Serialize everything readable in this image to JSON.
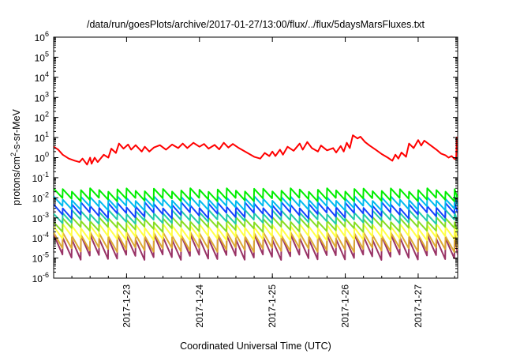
{
  "chart_data": {
    "type": "line",
    "title": "/data/run/goesPlots/archive/2017-01-27/13:00/flux/../flux/5daysMarsFluxes.txt",
    "xlabel": "Coordinated Universal Time (UTC)",
    "ylabel_parts": [
      "protons/cm",
      "2",
      "-s-sr-MeV"
    ],
    "yscale": "log",
    "ylim": [
      1e-06,
      1000000.0
    ],
    "xlim": [
      "2017-01-22T00:00",
      "2017-01-27T13:00"
    ],
    "grid": false,
    "y_ticks": [
      {
        "base": "10",
        "exp": "-6",
        "value": 1e-06
      },
      {
        "base": "10",
        "exp": "-5",
        "value": 1e-05
      },
      {
        "base": "10",
        "exp": "-4",
        "value": 0.0001
      },
      {
        "base": "10",
        "exp": "-3",
        "value": 0.001
      },
      {
        "base": "10",
        "exp": "-2",
        "value": 0.01
      },
      {
        "base": "10",
        "exp": "-1",
        "value": 0.1
      },
      {
        "base": "10",
        "exp": "0",
        "value": 1
      },
      {
        "base": "10",
        "exp": "1",
        "value": 10
      },
      {
        "base": "10",
        "exp": "2",
        "value": 100
      },
      {
        "base": "10",
        "exp": "3",
        "value": 1000
      },
      {
        "base": "10",
        "exp": "4",
        "value": 10000
      },
      {
        "base": "10",
        "exp": "5",
        "value": 100000
      },
      {
        "base": "10",
        "exp": "6",
        "value": 1000000
      }
    ],
    "x_ticks": [
      {
        "label": "2017-1-23",
        "value": "2017-01-23T00:00"
      },
      {
        "label": "2017-1-24",
        "value": "2017-01-24T00:00"
      },
      {
        "label": "2017-1-25",
        "value": "2017-01-25T00:00"
      },
      {
        "label": "2017-1-26",
        "value": "2017-01-26T00:00"
      },
      {
        "label": "2017-1-27",
        "value": "2017-01-27T00:00"
      }
    ],
    "series": [
      {
        "color": "#ff0000",
        "points": [
          [
            "2017-01-22T00:00",
            3.5
          ],
          [
            "2017-01-22T01:30",
            2.5
          ],
          [
            "2017-01-22T03:00",
            1.4
          ],
          [
            "2017-01-22T05:00",
            0.9
          ],
          [
            "2017-01-22T07:00",
            0.7
          ],
          [
            "2017-01-22T08:30",
            0.6
          ],
          [
            "2017-01-22T09:30",
            0.9
          ],
          [
            "2017-01-22T11:00",
            0.45
          ],
          [
            "2017-01-22T12:00",
            1.0
          ],
          [
            "2017-01-22T12:30",
            0.5
          ],
          [
            "2017-01-22T13:30",
            1.0
          ],
          [
            "2017-01-22T14:30",
            0.6
          ],
          [
            "2017-01-22T16:30",
            1.4
          ],
          [
            "2017-01-22T18:00",
            1.0
          ],
          [
            "2017-01-22T19:00",
            2.8
          ],
          [
            "2017-01-22T20:30",
            1.7
          ],
          [
            "2017-01-22T21:30",
            5.0
          ],
          [
            "2017-01-22T23:00",
            2.8
          ],
          [
            "2017-01-23T00:30",
            4.5
          ],
          [
            "2017-01-23T01:30",
            2.5
          ],
          [
            "2017-01-23T03:00",
            4.2
          ],
          [
            "2017-01-23T05:00",
            2.0
          ],
          [
            "2017-01-23T06:00",
            3.5
          ],
          [
            "2017-01-23T07:30",
            2.0
          ],
          [
            "2017-01-23T09:00",
            3.2
          ],
          [
            "2017-01-23T11:00",
            4.2
          ],
          [
            "2017-01-23T13:00",
            2.5
          ],
          [
            "2017-01-23T15:00",
            4.5
          ],
          [
            "2017-01-23T17:00",
            3.0
          ],
          [
            "2017-01-23T18:30",
            5.0
          ],
          [
            "2017-01-23T20:00",
            3.0
          ],
          [
            "2017-01-23T22:00",
            5.5
          ],
          [
            "2017-01-24T00:00",
            3.5
          ],
          [
            "2017-01-24T01:30",
            4.8
          ],
          [
            "2017-01-24T03:00",
            2.8
          ],
          [
            "2017-01-24T05:00",
            4.3
          ],
          [
            "2017-01-24T06:30",
            2.6
          ],
          [
            "2017-01-24T08:00",
            5.5
          ],
          [
            "2017-01-24T09:30",
            3.2
          ],
          [
            "2017-01-24T11:00",
            4.8
          ],
          [
            "2017-01-24T13:00",
            3.0
          ],
          [
            "2017-01-24T15:00",
            2.0
          ],
          [
            "2017-01-24T18:00",
            1.1
          ],
          [
            "2017-01-24T20:00",
            0.9
          ],
          [
            "2017-01-24T21:30",
            1.7
          ],
          [
            "2017-01-24T23:00",
            1.2
          ],
          [
            "2017-01-25T00:00",
            2.0
          ],
          [
            "2017-01-25T01:00",
            1.2
          ],
          [
            "2017-01-25T02:30",
            2.5
          ],
          [
            "2017-01-25T03:30",
            1.4
          ],
          [
            "2017-01-25T05:00",
            3.5
          ],
          [
            "2017-01-25T07:00",
            2.2
          ],
          [
            "2017-01-25T09:00",
            5.0
          ],
          [
            "2017-01-25T10:00",
            2.5
          ],
          [
            "2017-01-25T11:30",
            6.0
          ],
          [
            "2017-01-25T13:00",
            3.0
          ],
          [
            "2017-01-25T15:00",
            2.0
          ],
          [
            "2017-01-25T16:00",
            4.0
          ],
          [
            "2017-01-25T18:00",
            2.3
          ],
          [
            "2017-01-25T20:00",
            3.0
          ],
          [
            "2017-01-25T21:00",
            1.8
          ],
          [
            "2017-01-25T22:30",
            3.8
          ],
          [
            "2017-01-25T23:30",
            2.0
          ],
          [
            "2017-01-26T00:30",
            5.5
          ],
          [
            "2017-01-26T01:30",
            3.0
          ],
          [
            "2017-01-26T02:30",
            13
          ],
          [
            "2017-01-26T04:00",
            9
          ],
          [
            "2017-01-26T05:00",
            11
          ],
          [
            "2017-01-26T06:30",
            6
          ],
          [
            "2017-01-26T08:00",
            4
          ],
          [
            "2017-01-26T10:00",
            2.5
          ],
          [
            "2017-01-26T12:00",
            1.5
          ],
          [
            "2017-01-26T14:00",
            1.0
          ],
          [
            "2017-01-26T15:30",
            0.7
          ],
          [
            "2017-01-26T16:30",
            1.4
          ],
          [
            "2017-01-26T17:30",
            0.9
          ],
          [
            "2017-01-26T18:30",
            1.8
          ],
          [
            "2017-01-26T20:00",
            1.1
          ],
          [
            "2017-01-26T21:00",
            5.0
          ],
          [
            "2017-01-26T22:30",
            3.0
          ],
          [
            "2017-01-27T00:00",
            7.5
          ],
          [
            "2017-01-27T01:00",
            4.0
          ],
          [
            "2017-01-27T02:00",
            7.0
          ],
          [
            "2017-01-27T04:00",
            4.2
          ],
          [
            "2017-01-27T06:00",
            2.5
          ],
          [
            "2017-01-27T07:30",
            1.6
          ],
          [
            "2017-01-27T09:00",
            1.3
          ],
          [
            "2017-01-27T10:00",
            1.0
          ],
          [
            "2017-01-27T11:00",
            1.2
          ],
          [
            "2017-01-27T12:00",
            0.85
          ],
          [
            "2017-01-27T12:30",
            0.9
          ],
          [
            "2017-01-27T12:45",
            11
          ]
        ]
      },
      {
        "color": "#00ee00",
        "envelope": [
          0.02,
          0.03
        ],
        "period_hours": 3,
        "drop_factor": 3,
        "jitter": 0.08
      },
      {
        "color": "#00bbee",
        "envelope": [
          0.007,
          0.012
        ],
        "period_hours": 3,
        "drop_factor": 3,
        "jitter": 0.08
      },
      {
        "color": "#1144ff",
        "envelope": [
          0.003,
          0.006
        ],
        "period_hours": 3,
        "drop_factor": 3.2,
        "jitter": 0.08
      },
      {
        "color": "#22ccaa",
        "envelope": [
          0.0015,
          0.0025
        ],
        "period_hours": 3,
        "drop_factor": 3,
        "jitter": 0.08
      },
      {
        "color": "#88dd22",
        "envelope": [
          0.0006,
          0.0011
        ],
        "period_hours": 3,
        "drop_factor": 3,
        "jitter": 0.08
      },
      {
        "color": "#ffff44",
        "envelope": [
          0.0003,
          0.0005
        ],
        "period_hours": 3,
        "drop_factor": 4,
        "jitter": 0.08
      },
      {
        "color": "#ddaa33",
        "envelope": [
          0.00012,
          0.0002
        ],
        "period_hours": 3,
        "drop_factor": 6,
        "jitter": 0.08
      },
      {
        "color": "#993366",
        "envelope": [
          8e-05,
          0.00015
        ],
        "period_hours": 3,
        "drop_factor": 10,
        "jitter": 0.08
      }
    ]
  }
}
